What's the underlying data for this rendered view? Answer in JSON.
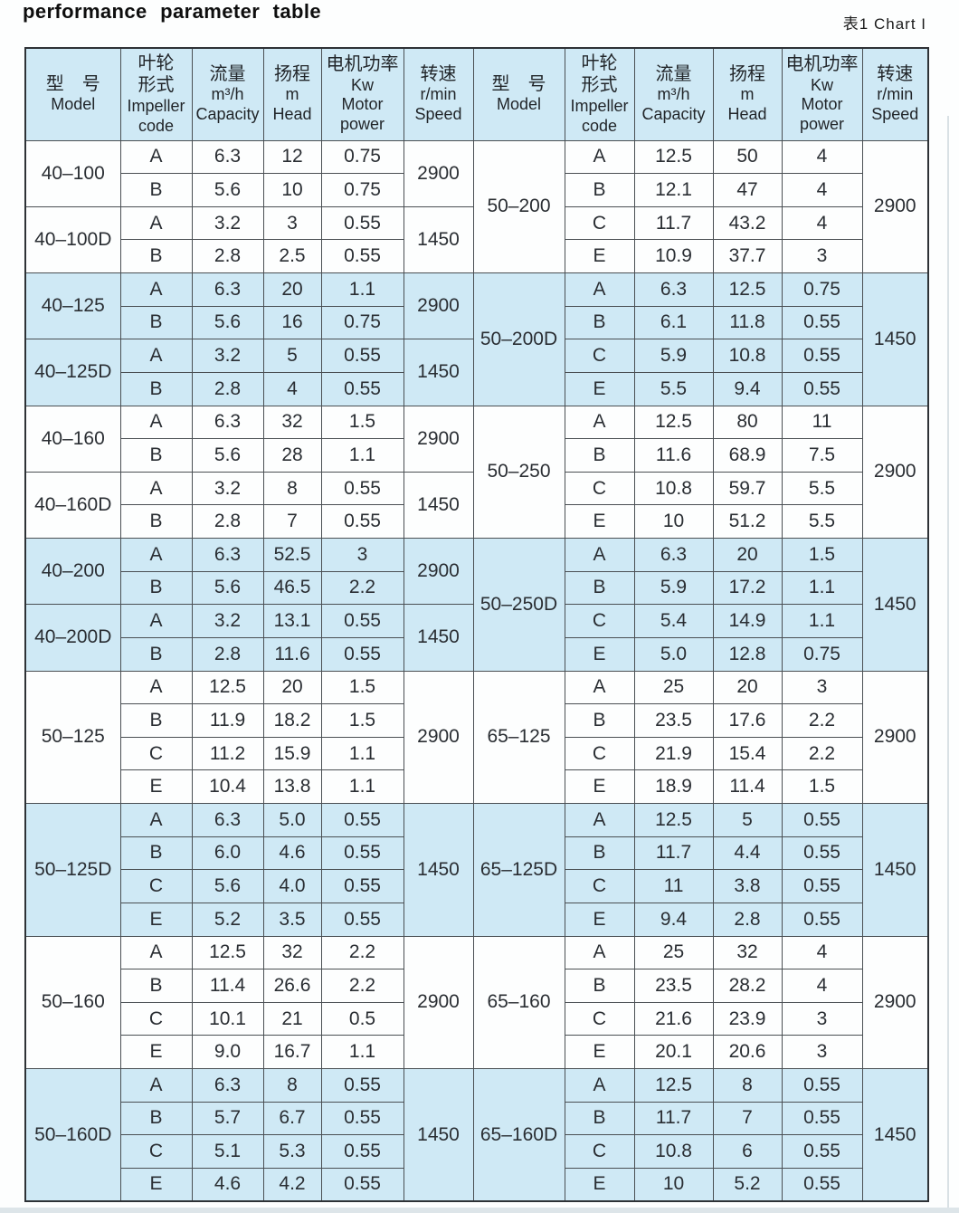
{
  "page": {
    "title": "performance parameter table",
    "caption": "表1  Chart I"
  },
  "table": {
    "header": {
      "model_zh": "型　号",
      "model_en": "Model",
      "impeller_zh_1": "叶轮",
      "impeller_zh_2": "形式",
      "impeller_en_1": "Impeller",
      "impeller_en_2": "code",
      "capacity_zh": "流量",
      "capacity_unit": "m³/h",
      "capacity_en": "Capacity",
      "head_zh": "扬程",
      "head_unit": "m",
      "head_en": "Head",
      "power_zh": "电机功率",
      "power_unit": "Kw",
      "power_en_1": "Motor",
      "power_en_2": "power",
      "speed_zh": "转速",
      "speed_unit": "r/min",
      "speed_en": "Speed"
    },
    "columns": [
      "model",
      "impeller_code",
      "capacity_m3h",
      "head_m",
      "motor_power_kw",
      "speed_rpm"
    ],
    "left_groups": [
      {
        "model": "40–100",
        "speed": "2900",
        "rows": [
          [
            "A",
            "6.3",
            "12",
            "0.75"
          ],
          [
            "B",
            "5.6",
            "10",
            "0.75"
          ]
        ]
      },
      {
        "model": "40–100D",
        "speed": "1450",
        "rows": [
          [
            "A",
            "3.2",
            "3",
            "0.55"
          ],
          [
            "B",
            "2.8",
            "2.5",
            "0.55"
          ]
        ]
      },
      {
        "model": "40–125",
        "speed": "2900",
        "rows": [
          [
            "A",
            "6.3",
            "20",
            "1.1"
          ],
          [
            "B",
            "5.6",
            "16",
            "0.75"
          ]
        ]
      },
      {
        "model": "40–125D",
        "speed": "1450",
        "rows": [
          [
            "A",
            "3.2",
            "5",
            "0.55"
          ],
          [
            "B",
            "2.8",
            "4",
            "0.55"
          ]
        ]
      },
      {
        "model": "40–160",
        "speed": "2900",
        "rows": [
          [
            "A",
            "6.3",
            "32",
            "1.5"
          ],
          [
            "B",
            "5.6",
            "28",
            "1.1"
          ]
        ]
      },
      {
        "model": "40–160D",
        "speed": "1450",
        "rows": [
          [
            "A",
            "3.2",
            "8",
            "0.55"
          ],
          [
            "B",
            "2.8",
            "7",
            "0.55"
          ]
        ]
      },
      {
        "model": "40–200",
        "speed": "2900",
        "rows": [
          [
            "A",
            "6.3",
            "52.5",
            "3"
          ],
          [
            "B",
            "5.6",
            "46.5",
            "2.2"
          ]
        ]
      },
      {
        "model": "40–200D",
        "speed": "1450",
        "rows": [
          [
            "A",
            "3.2",
            "13.1",
            "0.55"
          ],
          [
            "B",
            "2.8",
            "11.6",
            "0.55"
          ]
        ]
      },
      {
        "model": "50–125",
        "speed": "2900",
        "rows": [
          [
            "A",
            "12.5",
            "20",
            "1.5"
          ],
          [
            "B",
            "11.9",
            "18.2",
            "1.5"
          ],
          [
            "C",
            "11.2",
            "15.9",
            "1.1"
          ],
          [
            "E",
            "10.4",
            "13.8",
            "1.1"
          ]
        ]
      },
      {
        "model": "50–125D",
        "speed": "1450",
        "rows": [
          [
            "A",
            "6.3",
            "5.0",
            "0.55"
          ],
          [
            "B",
            "6.0",
            "4.6",
            "0.55"
          ],
          [
            "C",
            "5.6",
            "4.0",
            "0.55"
          ],
          [
            "E",
            "5.2",
            "3.5",
            "0.55"
          ]
        ]
      },
      {
        "model": "50–160",
        "speed": "2900",
        "rows": [
          [
            "A",
            "12.5",
            "32",
            "2.2"
          ],
          [
            "B",
            "11.4",
            "26.6",
            "2.2"
          ],
          [
            "C",
            "10.1",
            "21",
            "0.5"
          ],
          [
            "E",
            "9.0",
            "16.7",
            "1.1"
          ]
        ]
      },
      {
        "model": "50–160D",
        "speed": "1450",
        "rows": [
          [
            "A",
            "6.3",
            "8",
            "0.55"
          ],
          [
            "B",
            "5.7",
            "6.7",
            "0.55"
          ],
          [
            "C",
            "5.1",
            "5.3",
            "0.55"
          ],
          [
            "E",
            "4.6",
            "4.2",
            "0.55"
          ]
        ]
      }
    ],
    "right_groups": [
      {
        "model": "50–200",
        "speed": "2900",
        "rows": [
          [
            "A",
            "12.5",
            "50",
            "4"
          ],
          [
            "B",
            "12.1",
            "47",
            "4"
          ],
          [
            "C",
            "11.7",
            "43.2",
            "4"
          ],
          [
            "E",
            "10.9",
            "37.7",
            "3"
          ]
        ]
      },
      {
        "model": "50–200D",
        "speed": "1450",
        "rows": [
          [
            "A",
            "6.3",
            "12.5",
            "0.75"
          ],
          [
            "B",
            "6.1",
            "11.8",
            "0.55"
          ],
          [
            "C",
            "5.9",
            "10.8",
            "0.55"
          ],
          [
            "E",
            "5.5",
            "9.4",
            "0.55"
          ]
        ]
      },
      {
        "model": "50–250",
        "speed": "2900",
        "rows": [
          [
            "A",
            "12.5",
            "80",
            "11"
          ],
          [
            "B",
            "11.6",
            "68.9",
            "7.5"
          ],
          [
            "C",
            "10.8",
            "59.7",
            "5.5"
          ],
          [
            "E",
            "10",
            "51.2",
            "5.5"
          ]
        ]
      },
      {
        "model": "50–250D",
        "speed": "1450",
        "rows": [
          [
            "A",
            "6.3",
            "20",
            "1.5"
          ],
          [
            "B",
            "5.9",
            "17.2",
            "1.1"
          ],
          [
            "C",
            "5.4",
            "14.9",
            "1.1"
          ],
          [
            "E",
            "5.0",
            "12.8",
            "0.75"
          ]
        ]
      },
      {
        "model": "65–125",
        "speed": "2900",
        "rows": [
          [
            "A",
            "25",
            "20",
            "3"
          ],
          [
            "B",
            "23.5",
            "17.6",
            "2.2"
          ],
          [
            "C",
            "21.9",
            "15.4",
            "2.2"
          ],
          [
            "E",
            "18.9",
            "11.4",
            "1.5"
          ]
        ]
      },
      {
        "model": "65–125D",
        "speed": "1450",
        "rows": [
          [
            "A",
            "12.5",
            "5",
            "0.55"
          ],
          [
            "B",
            "11.7",
            "4.4",
            "0.55"
          ],
          [
            "C",
            "11",
            "3.8",
            "0.55"
          ],
          [
            "E",
            "9.4",
            "2.8",
            "0.55"
          ]
        ]
      },
      {
        "model": "65–160",
        "speed": "2900",
        "rows": [
          [
            "A",
            "25",
            "32",
            "4"
          ],
          [
            "B",
            "23.5",
            "28.2",
            "4"
          ],
          [
            "C",
            "21.6",
            "23.9",
            "3"
          ],
          [
            "E",
            "20.1",
            "20.6",
            "3"
          ]
        ]
      },
      {
        "model": "65–160D",
        "speed": "1450",
        "rows": [
          [
            "A",
            "12.5",
            "8",
            "0.55"
          ],
          [
            "B",
            "11.7",
            "7",
            "0.55"
          ],
          [
            "C",
            "10.8",
            "6",
            "0.55"
          ],
          [
            "E",
            "10",
            "5.2",
            "0.55"
          ]
        ]
      }
    ]
  }
}
